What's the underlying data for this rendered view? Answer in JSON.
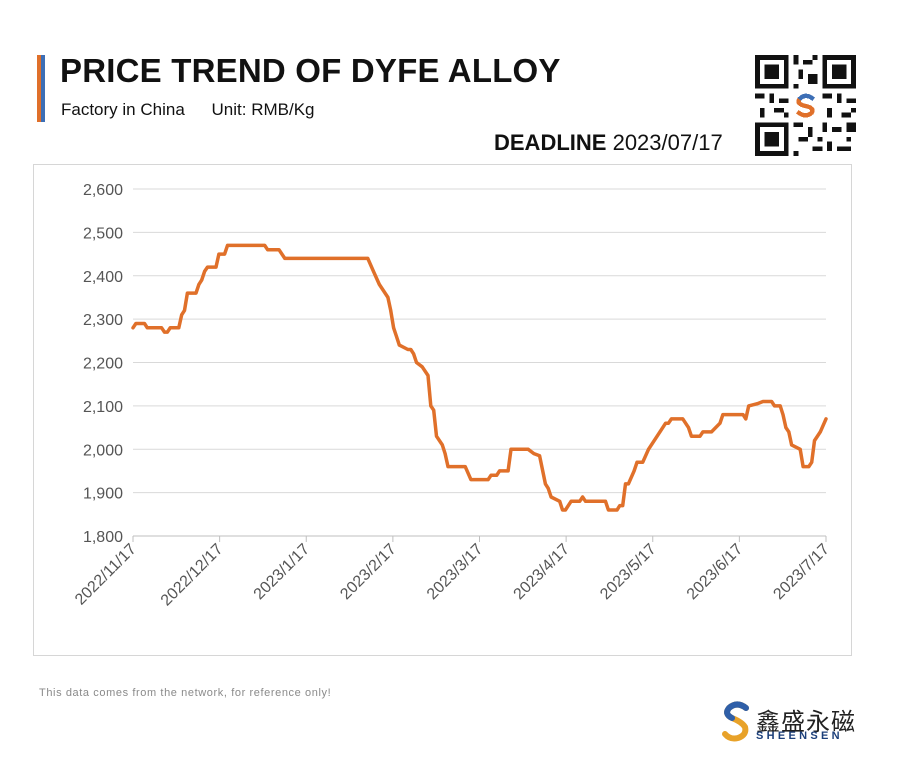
{
  "header": {
    "title": "PRICE TREND OF DYFE ALLOY",
    "subtitle_factory": "Factory in China",
    "subtitle_unit": "Unit: RMB/Kg",
    "deadline_label": "DEADLINE",
    "deadline_date": "2023/07/17"
  },
  "footer": {
    "note": "This data comes from the network, for reference only!",
    "logo_cn": "鑫盛永磁",
    "logo_en": "SHEENSEN"
  },
  "colors": {
    "line": "#e0702a",
    "grid": "#d9d9d9",
    "axis_text": "#555555",
    "accent_orange": "#e0702a",
    "accent_blue": "#3d6fb6"
  },
  "chart_data": {
    "type": "line",
    "ylim": [
      1800,
      2600
    ],
    "yticks": [
      1800,
      1900,
      2000,
      2100,
      2200,
      2300,
      2400,
      2500,
      2600
    ],
    "ytick_labels": [
      "1,800",
      "1,900",
      "2,000",
      "2,100",
      "2,200",
      "2,300",
      "2,400",
      "2,500",
      "2,600"
    ],
    "xlim": [
      "2022-11-17",
      "2023-07-17"
    ],
    "xtick_labels": [
      "2022/11/17",
      "2022/12/17",
      "2023/1/17",
      "2023/2/17",
      "2023/3/17",
      "2023/4/17",
      "2023/5/17",
      "2023/6/17",
      "2023/7/17"
    ],
    "grid": true,
    "legend": "none",
    "series": [
      {
        "points": [
          [
            "2022-11-17",
            2280
          ],
          [
            "2022-11-18",
            2290
          ],
          [
            "2022-11-21",
            2290
          ],
          [
            "2022-11-22",
            2280
          ],
          [
            "2022-11-27",
            2280
          ],
          [
            "2022-11-28",
            2270
          ],
          [
            "2022-11-29",
            2270
          ],
          [
            "2022-11-30",
            2280
          ],
          [
            "2022-12-03",
            2280
          ],
          [
            "2022-12-04",
            2310
          ],
          [
            "2022-12-05",
            2320
          ],
          [
            "2022-12-06",
            2360
          ],
          [
            "2022-12-09",
            2360
          ],
          [
            "2022-12-10",
            2380
          ],
          [
            "2022-12-11",
            2390
          ],
          [
            "2022-12-12",
            2410
          ],
          [
            "2022-12-13",
            2420
          ],
          [
            "2022-12-16",
            2420
          ],
          [
            "2022-12-17",
            2450
          ],
          [
            "2022-12-19",
            2450
          ],
          [
            "2022-12-20",
            2470
          ],
          [
            "2023-01-02",
            2470
          ],
          [
            "2023-01-03",
            2460
          ],
          [
            "2023-01-07",
            2460
          ],
          [
            "2023-01-09",
            2440
          ],
          [
            "2023-02-07",
            2440
          ],
          [
            "2023-02-09",
            2410
          ],
          [
            "2023-02-11",
            2380
          ],
          [
            "2023-02-14",
            2350
          ],
          [
            "2023-02-15",
            2320
          ],
          [
            "2023-02-16",
            2280
          ],
          [
            "2023-02-17",
            2260
          ],
          [
            "2023-02-18",
            2240
          ],
          [
            "2023-02-21",
            2230
          ],
          [
            "2023-02-22",
            2230
          ],
          [
            "2023-02-23",
            2220
          ],
          [
            "2023-02-24",
            2200
          ],
          [
            "2023-02-26",
            2190
          ],
          [
            "2023-02-28",
            2170
          ],
          [
            "2023-03-01",
            2100
          ],
          [
            "2023-03-02",
            2090
          ],
          [
            "2023-03-03",
            2030
          ],
          [
            "2023-03-05",
            2010
          ],
          [
            "2023-03-06",
            1990
          ],
          [
            "2023-03-07",
            1960
          ],
          [
            "2023-03-13",
            1960
          ],
          [
            "2023-03-15",
            1930
          ],
          [
            "2023-03-21",
            1930
          ],
          [
            "2023-03-22",
            1940
          ],
          [
            "2023-03-24",
            1940
          ],
          [
            "2023-03-25",
            1950
          ],
          [
            "2023-03-28",
            1950
          ],
          [
            "2023-03-29",
            2000
          ],
          [
            "2023-04-04",
            2000
          ],
          [
            "2023-04-06",
            1990
          ],
          [
            "2023-04-08",
            1985
          ],
          [
            "2023-04-10",
            1920
          ],
          [
            "2023-04-11",
            1910
          ],
          [
            "2023-04-12",
            1890
          ],
          [
            "2023-04-15",
            1880
          ],
          [
            "2023-04-16",
            1860
          ],
          [
            "2023-04-17",
            1860
          ],
          [
            "2023-04-19",
            1880
          ],
          [
            "2023-04-22",
            1880
          ],
          [
            "2023-04-23",
            1890
          ],
          [
            "2023-04-24",
            1880
          ],
          [
            "2023-05-01",
            1880
          ],
          [
            "2023-05-02",
            1860
          ],
          [
            "2023-05-05",
            1860
          ],
          [
            "2023-05-06",
            1870
          ],
          [
            "2023-05-07",
            1870
          ],
          [
            "2023-05-08",
            1920
          ],
          [
            "2023-05-09",
            1920
          ],
          [
            "2023-05-11",
            1950
          ],
          [
            "2023-05-12",
            1970
          ],
          [
            "2023-05-14",
            1970
          ],
          [
            "2023-05-16",
            2000
          ],
          [
            "2023-05-20",
            2040
          ],
          [
            "2023-05-22",
            2060
          ],
          [
            "2023-05-23",
            2060
          ],
          [
            "2023-05-24",
            2070
          ],
          [
            "2023-05-28",
            2070
          ],
          [
            "2023-05-30",
            2050
          ],
          [
            "2023-05-31",
            2030
          ],
          [
            "2023-06-03",
            2030
          ],
          [
            "2023-06-04",
            2040
          ],
          [
            "2023-06-07",
            2040
          ],
          [
            "2023-06-10",
            2060
          ],
          [
            "2023-06-11",
            2080
          ],
          [
            "2023-06-18",
            2080
          ],
          [
            "2023-06-19",
            2070
          ],
          [
            "2023-06-20",
            2100
          ],
          [
            "2023-06-23",
            2105
          ],
          [
            "2023-06-25",
            2110
          ],
          [
            "2023-06-28",
            2110
          ],
          [
            "2023-06-29",
            2100
          ],
          [
            "2023-07-01",
            2100
          ],
          [
            "2023-07-02",
            2080
          ],
          [
            "2023-07-03",
            2050
          ],
          [
            "2023-07-04",
            2040
          ],
          [
            "2023-07-05",
            2010
          ],
          [
            "2023-07-08",
            2000
          ],
          [
            "2023-07-09",
            1960
          ],
          [
            "2023-07-11",
            1960
          ],
          [
            "2023-07-12",
            1970
          ],
          [
            "2023-07-13",
            2020
          ],
          [
            "2023-07-15",
            2040
          ],
          [
            "2023-07-17",
            2070
          ]
        ]
      }
    ]
  }
}
